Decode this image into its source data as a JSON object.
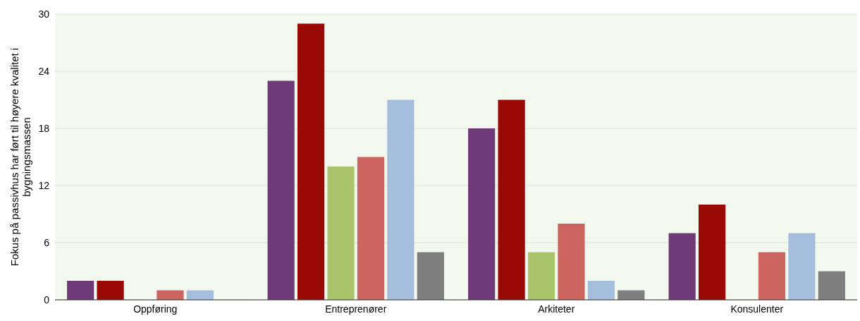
{
  "chart_data": {
    "type": "bar",
    "ylabel": "Fokus på passivhus har ført til høyere kvalitet i bygningsmassen",
    "categories": [
      "Oppføring",
      "Entreprenører",
      "Arkiteter",
      "Konsulenter"
    ],
    "series": [
      {
        "color": "#6f3a78",
        "values": [
          2,
          23,
          18,
          7
        ]
      },
      {
        "color": "#990a06",
        "values": [
          2,
          29,
          21,
          10
        ]
      },
      {
        "color": "#a9c46a",
        "values": [
          0,
          14,
          5,
          0
        ]
      },
      {
        "color": "#cc6560",
        "values": [
          1,
          15,
          8,
          5
        ]
      },
      {
        "color": "#a5bddd",
        "values": [
          1,
          21,
          2,
          7
        ]
      },
      {
        "color": "#7f7f7f",
        "values": [
          0,
          5,
          1,
          3
        ]
      }
    ],
    "ylim": [
      0,
      30
    ],
    "yticks": [
      0,
      6,
      12,
      18,
      24,
      30
    ],
    "grid": "y"
  }
}
